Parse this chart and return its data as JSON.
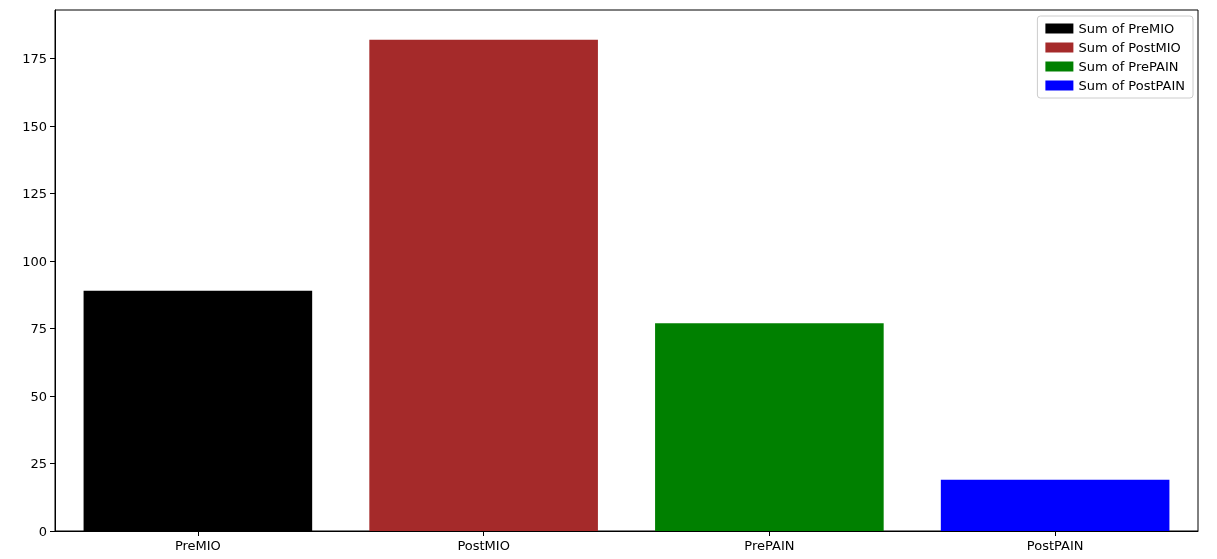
{
  "chart_data": {
    "type": "bar",
    "categories": [
      "PreMIO",
      "PostMIO",
      "PrePAIN",
      "PostPAIN"
    ],
    "series": [
      {
        "name": "Sum of PreMIO",
        "color": "#000000",
        "values": [
          89,
          null,
          null,
          null
        ]
      },
      {
        "name": "Sum of PostMIO",
        "color": "#a52a2a",
        "values": [
          null,
          182,
          null,
          null
        ]
      },
      {
        "name": "Sum of PrePAIN",
        "color": "#008000",
        "values": [
          null,
          null,
          77,
          null
        ]
      },
      {
        "name": "Sum of PostPAIN",
        "color": "#0000ff",
        "values": [
          null,
          null,
          null,
          19
        ]
      }
    ],
    "ylim": [
      0,
      193
    ],
    "yticks": [
      0,
      25,
      50,
      75,
      100,
      125,
      150,
      175
    ],
    "grid": false,
    "legend": "top right"
  }
}
